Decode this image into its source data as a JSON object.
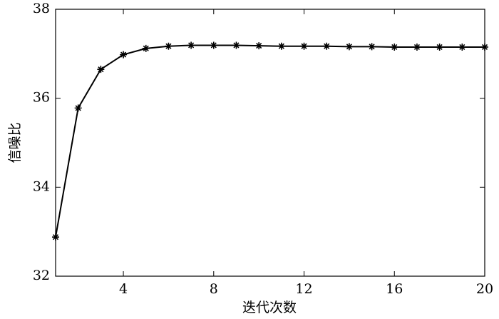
{
  "chart_data": {
    "type": "line",
    "x_label": "迭代次数",
    "y_label": "信噪比",
    "x": [
      1,
      2,
      3,
      4,
      5,
      6,
      7,
      8,
      9,
      10,
      11,
      12,
      13,
      14,
      15,
      16,
      17,
      18,
      19,
      20
    ],
    "series": [
      {
        "color": "#000000",
        "values": [
          32.88,
          35.78,
          36.65,
          36.98,
          37.12,
          37.17,
          37.19,
          37.19,
          37.19,
          37.18,
          37.17,
          37.17,
          37.17,
          37.16,
          37.16,
          37.15,
          37.15,
          37.15,
          37.15,
          37.15
        ]
      }
    ],
    "xlim": [
      1,
      20
    ],
    "xticks": [
      4,
      8,
      12,
      16,
      20
    ],
    "ylim": [
      32,
      38
    ],
    "yticks": [
      32,
      34,
      36,
      38
    ]
  }
}
